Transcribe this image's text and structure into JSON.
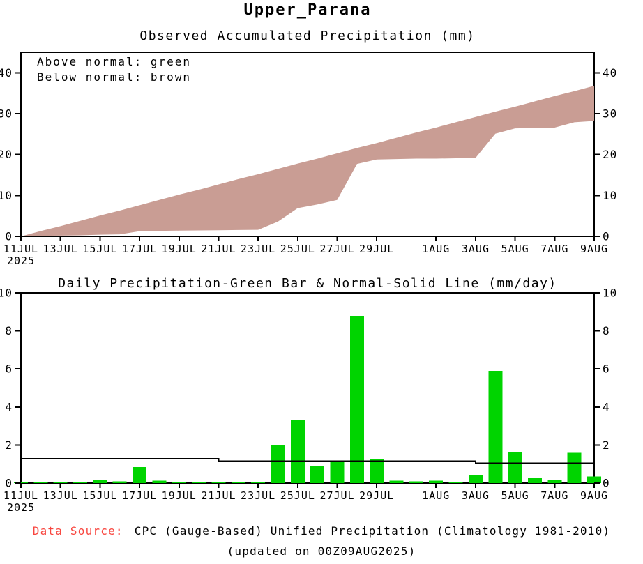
{
  "page": {
    "title": "Upper_Parana",
    "footer": {
      "data_source_label": "Data Source:",
      "data_source_text": "CPC (Gauge-Based) Unified Precipitation (Climatology 1981-2010)",
      "updated_text": "(updated on 00Z09AUG2025)"
    },
    "colors": {
      "above_normal_green": "#00d400",
      "below_normal_brown": "#c99d94",
      "data_source_red": "#f8463f",
      "axis_black": "#000000"
    }
  },
  "chart_data": [
    {
      "type": "area",
      "title": "Observed Accumulated Precipitation (mm)",
      "legend_above": "Above normal: green",
      "legend_below": "Below normal: brown",
      "ylim": [
        0,
        45
      ],
      "yticks": [
        0,
        10,
        20,
        30,
        40
      ],
      "x_year_label": "2025",
      "x_tick_days": [
        0,
        2,
        4,
        6,
        8,
        10,
        12,
        14,
        16,
        18,
        21,
        23,
        25,
        27,
        29
      ],
      "x_tick_labels": [
        "11JUL",
        "13JUL",
        "15JUL",
        "17JUL",
        "19JUL",
        "21JUL",
        "23JUL",
        "25JUL",
        "27JUL",
        "29JUL",
        "1AUG",
        "3AUG",
        "5AUG",
        "7AUG",
        "9AUG"
      ],
      "num_days": 30,
      "fill_between_color": "#c99d94",
      "series": [
        {
          "name": "normal_accumulated",
          "values": [
            0,
            1.3,
            2.5,
            3.8,
            5.1,
            6.3,
            7.6,
            8.9,
            10.2,
            11.4,
            12.7,
            14.0,
            15.2,
            16.5,
            17.8,
            19.0,
            20.3,
            21.6,
            22.8,
            24.1,
            25.4,
            26.6,
            27.9,
            29.2,
            30.5,
            31.7,
            33.0,
            34.3,
            35.5,
            36.8
          ]
        },
        {
          "name": "observed_accumulated",
          "values": [
            0.1,
            0.15,
            0.2,
            0.25,
            0.4,
            0.5,
            1.25,
            1.35,
            1.4,
            1.45,
            1.5,
            1.55,
            1.6,
            3.6,
            6.9,
            7.8,
            8.9,
            17.7,
            18.8,
            18.9,
            19.0,
            19.0,
            19.1,
            19.2,
            25.1,
            26.4,
            26.5,
            26.6,
            27.9,
            28.2
          ]
        }
      ]
    },
    {
      "type": "bar",
      "title": "Daily Precipitation-Green Bar & Normal-Solid Line (mm/day)",
      "ylim": [
        0,
        10
      ],
      "yticks": [
        0,
        2,
        4,
        6,
        8,
        10
      ],
      "x_year_label": "2025",
      "x_tick_days": [
        0,
        2,
        4,
        6,
        8,
        10,
        12,
        14,
        16,
        18,
        21,
        23,
        25,
        27,
        29
      ],
      "x_tick_labels": [
        "11JUL",
        "13JUL",
        "15JUL",
        "17JUL",
        "19JUL",
        "21JUL",
        "23JUL",
        "25JUL",
        "27JUL",
        "29JUL",
        "1AUG",
        "3AUG",
        "5AUG",
        "7AUG",
        "9AUG"
      ],
      "num_days": 30,
      "bar_color": "#00d400",
      "series": [
        {
          "name": "daily_precipitation",
          "type": "bar",
          "values": [
            0.05,
            0.05,
            0.07,
            0.05,
            0.15,
            0.1,
            0.85,
            0.12,
            0.06,
            0.05,
            0.06,
            0.05,
            0.07,
            2.0,
            3.3,
            0.9,
            1.1,
            8.8,
            1.25,
            0.12,
            0.1,
            0.12,
            0.06,
            0.4,
            5.9,
            1.65,
            0.25,
            0.15,
            1.6,
            0.35
          ]
        },
        {
          "name": "normal_daily",
          "type": "step_line",
          "color": "#000000",
          "segments": [
            {
              "start_day": 0,
              "end_day": 10,
              "value": 1.28
            },
            {
              "start_day": 10,
              "end_day": 23,
              "value": 1.16
            },
            {
              "start_day": 23,
              "end_day": 29,
              "value": 1.04
            }
          ]
        }
      ]
    }
  ]
}
